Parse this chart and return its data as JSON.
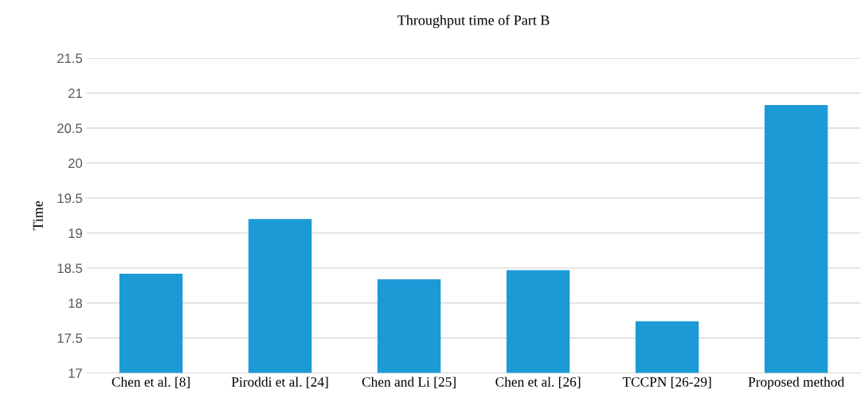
{
  "chart_data": {
    "type": "bar",
    "title": "Throughput time of Part B",
    "ylabel": "Time",
    "categories": [
      "Chen et al. [8]",
      "Piroddi et al. [24]",
      "Chen and Li [25]",
      "Chen et al. [26]",
      "TCCPN [26-29]",
      "Proposed method"
    ],
    "values": [
      18.42,
      19.2,
      18.34,
      18.47,
      17.74,
      20.83
    ],
    "color": "#1b9ad6",
    "ylim": [
      17,
      21.5
    ],
    "yticks": [
      17,
      17.5,
      18,
      18.5,
      19,
      19.5,
      20,
      20.5,
      21,
      21.5
    ],
    "grid": "y"
  }
}
